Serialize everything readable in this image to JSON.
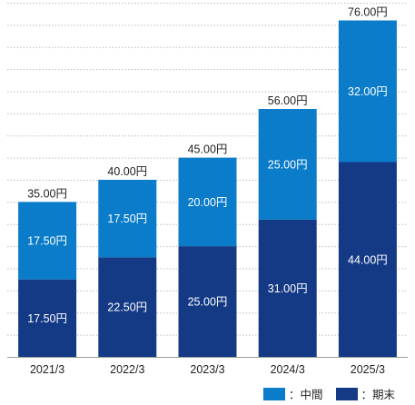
{
  "chart_data": {
    "type": "bar",
    "stacked": true,
    "categories": [
      "2021/3",
      "2022/3",
      "2023/3",
      "2024/3",
      "2025/3"
    ],
    "series": [
      {
        "name": "：期末",
        "values": [
          17.5,
          22.5,
          25.0,
          31.0,
          44.0
        ],
        "color": "#143a86"
      },
      {
        "name": "：中間",
        "values": [
          17.5,
          17.5,
          20.0,
          25.0,
          32.0
        ],
        "color": "#0a7cc9"
      }
    ],
    "totals": [
      35.0,
      40.0,
      45.0,
      56.0,
      76.0
    ],
    "unit_suffix": "円",
    "ylim": [
      0,
      80
    ],
    "grid": true,
    "legend": "bottom-right",
    "title": "",
    "xlabel": "",
    "ylabel": ""
  }
}
